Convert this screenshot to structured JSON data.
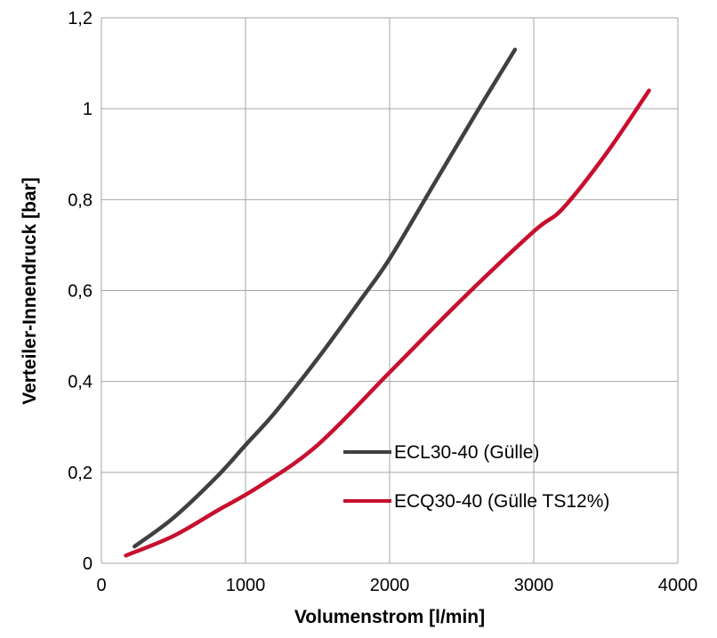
{
  "chart_data": {
    "type": "line",
    "xlabel": "Volumenstrom [l/min]",
    "ylabel": "Verteiler-Innendruck [bar]",
    "xlim": [
      0,
      4000
    ],
    "ylim": [
      0,
      1.2
    ],
    "x_ticks": [
      0,
      1000,
      2000,
      3000,
      4000
    ],
    "x_tick_labels": [
      "0",
      "1000",
      "2000",
      "3000",
      "4000"
    ],
    "y_ticks": [
      0,
      0.2,
      0.4,
      0.6,
      0.8,
      1.0,
      1.2
    ],
    "y_tick_labels": [
      "0",
      "0,2",
      "0,4",
      "0,6",
      "0,8",
      "1",
      "1,2"
    ],
    "grid": true,
    "legend_position": "bottom-right",
    "series": [
      {
        "name": "ECL30-40 (Gülle)",
        "color": "#404040",
        "x": [
          230,
          500,
          800,
          1000,
          1200,
          1500,
          1800,
          2000,
          2300,
          2600,
          2870
        ],
        "y": [
          0.037,
          0.1,
          0.19,
          0.26,
          0.33,
          0.45,
          0.58,
          0.67,
          0.83,
          0.99,
          1.13
        ]
      },
      {
        "name": "ECQ30-40 (Gülle TS12%)",
        "color": "#c8102e",
        "x": [
          170,
          500,
          800,
          1100,
          1500,
          2000,
          2500,
          3000,
          3200,
          3500,
          3800
        ],
        "y": [
          0.017,
          0.06,
          0.115,
          0.17,
          0.26,
          0.42,
          0.58,
          0.73,
          0.78,
          0.9,
          1.04
        ]
      }
    ]
  }
}
